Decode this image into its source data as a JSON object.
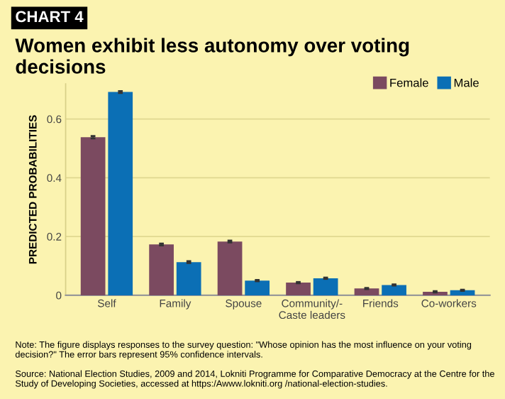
{
  "chart_data": {
    "type": "bar",
    "title": "Women exhibit less autonomy over voting decisions",
    "ylabel": "PREDICTED PROBABILITIES",
    "annotations": [
      "CHART 4",
      "Note: The figure displays responses to the survey question: \"Whose opinion has the most influence on your voting decision?\" The error bars represent 95% confidence intervals.",
      "Source: National Election Studies, 2009 and 2014, Lokniti Programme for Comparative Democracy at the Centre for the Study of Developing Societies, accessed at https:/Awww.lokniti.org /national-election-studies."
    ],
    "categories": [
      "Self",
      "Family",
      "Spouse",
      "Community/-\nCaste leaders",
      "Friends",
      "Co-workers"
    ],
    "series": [
      {
        "name": "Female",
        "color": "#7b4a60",
        "values": [
          0.538,
          0.173,
          0.183,
          0.043,
          0.023,
          0.012
        ],
        "errors": [
          0.004,
          0.003,
          0.003,
          0.002,
          0.002,
          0.002
        ]
      },
      {
        "name": "Male",
        "color": "#0b6fb5",
        "values": [
          0.692,
          0.113,
          0.05,
          0.058,
          0.035,
          0.017
        ],
        "errors": [
          0.003,
          0.003,
          0.002,
          0.002,
          0.002,
          0.002
        ]
      }
    ],
    "ylim": [
      0,
      0.72
    ],
    "yticks": [
      0,
      0.2,
      0.4,
      0.6
    ],
    "grid": "y",
    "legend": "top right"
  }
}
